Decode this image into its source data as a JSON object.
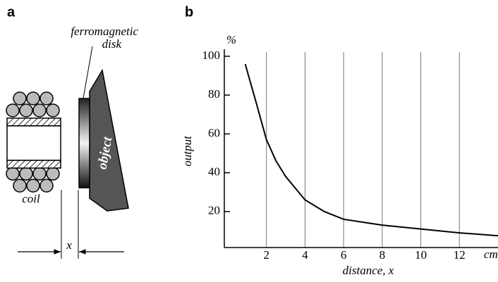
{
  "diagram": {
    "panel_label": "a",
    "disk_label_1": "ferromagnetic",
    "disk_label_2": "disk",
    "coil_label": "coil",
    "object_label": "object",
    "gap_label": "x"
  },
  "chart_data": {
    "type": "line",
    "panel_label": "b",
    "y_unit": "%",
    "ylabel": "output",
    "xlabel": "distance, x",
    "x_unit": "cm",
    "x": [
      0.9,
      1.5,
      2,
      2.5,
      3,
      4,
      5,
      6,
      7,
      8,
      9,
      10,
      11,
      12,
      13,
      14
    ],
    "series": [
      {
        "color": "#000000",
        "values": [
          96,
          75,
          57,
          46,
          38,
          26,
          20,
          16,
          14.5,
          13,
          12,
          11,
          10,
          9,
          8.3,
          7.5
        ]
      }
    ],
    "xlim": [
      0,
      14
    ],
    "ylim": [
      0,
      100
    ],
    "xticks": [
      2,
      4,
      6,
      8,
      10,
      12
    ],
    "yticks": [
      20,
      40,
      60,
      80,
      100
    ],
    "grid": true
  }
}
